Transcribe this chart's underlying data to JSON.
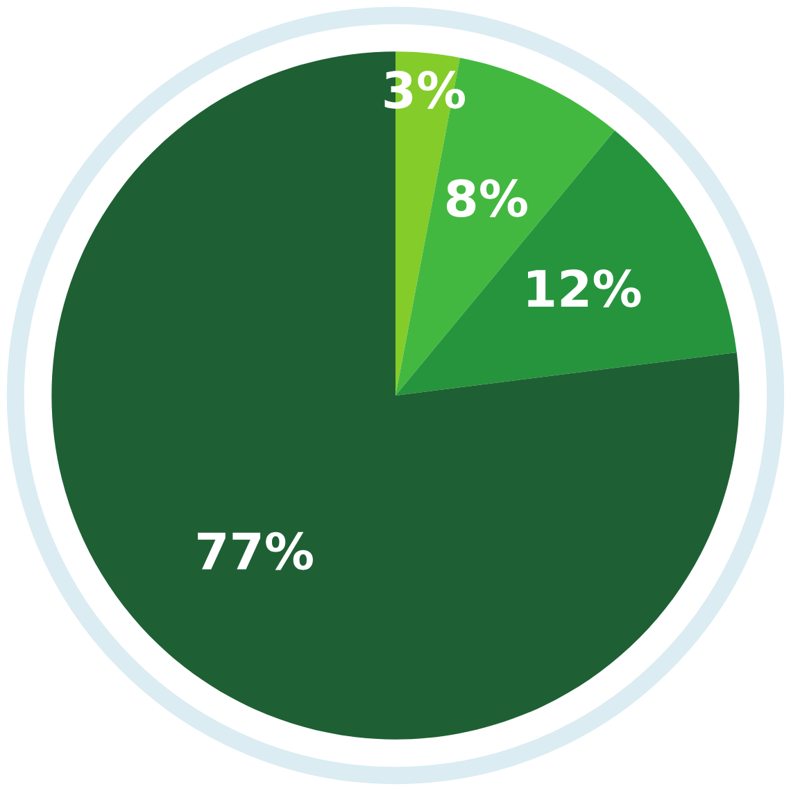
{
  "chart_data": {
    "type": "pie",
    "categories": [
      null,
      null,
      null,
      null
    ],
    "values": [
      3,
      8,
      12,
      77
    ],
    "colors": [
      "#84cc2a",
      "#43b840",
      "#26943c",
      "#1e6034"
    ],
    "value_labels": [
      "3%",
      "8%",
      "12%",
      "77%"
    ]
  }
}
